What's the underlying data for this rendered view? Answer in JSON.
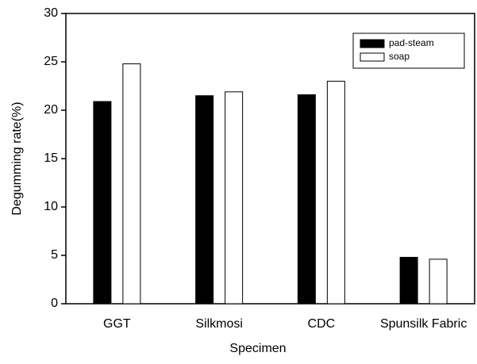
{
  "chart_data": {
    "type": "bar",
    "xlabel": "Specimen",
    "ylabel": "Degumming rate(%)",
    "categories": [
      "GGT",
      "Silkmosi",
      "CDC",
      "Spunsilk Fabric"
    ],
    "series": [
      {
        "name": "pad-steam",
        "color": "#000000",
        "values": [
          20.9,
          21.5,
          21.6,
          4.8
        ]
      },
      {
        "name": "soap",
        "color": "#ffffff",
        "values": [
          24.8,
          21.9,
          23.0,
          4.6
        ]
      }
    ],
    "ylim": [
      0,
      30
    ],
    "yticks": [
      0,
      5,
      10,
      15,
      20,
      25,
      30
    ],
    "legend": "upper right"
  }
}
